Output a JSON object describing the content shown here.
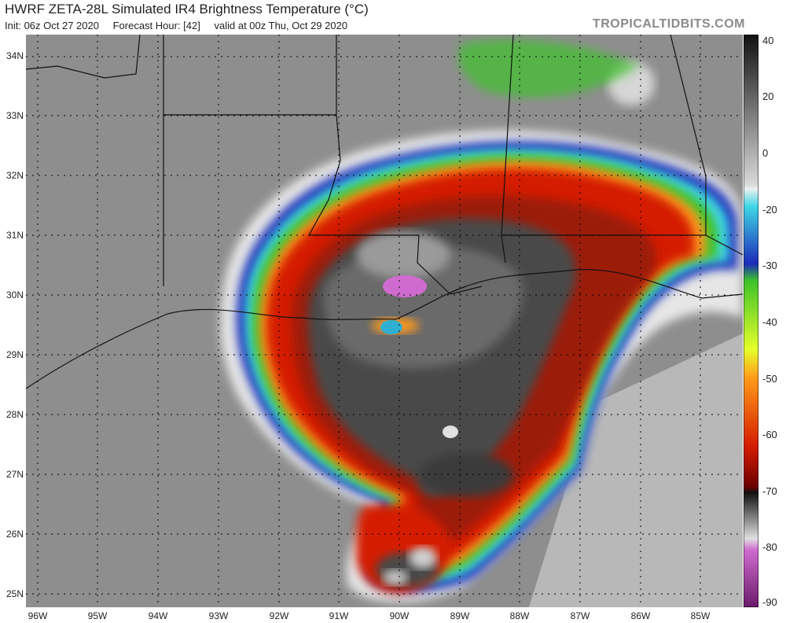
{
  "header": {
    "title": "HWRF ZETA-28L Simulated IR4 Brightness Temperature (°C)",
    "init": "Init: 06z Oct 27 2020",
    "forecast": "Forecast Hour: [42]",
    "valid": "valid at 00z Thu, Oct 29 2020",
    "brand": "TROPICALTIDBITS.COM"
  },
  "map": {
    "lat_labels": [
      "34N",
      "33N",
      "32N",
      "31N",
      "30N",
      "29N",
      "28N",
      "27N",
      "26N",
      "25N"
    ],
    "lon_labels": [
      "96W",
      "95W",
      "94W",
      "93W",
      "92W",
      "91W",
      "90W",
      "89W",
      "88W",
      "87W",
      "86W",
      "85W"
    ]
  },
  "colorbar": {
    "labels": [
      "40",
      "20",
      "0",
      "-20",
      "-30",
      "-40",
      "-50",
      "-60",
      "-70",
      "-80",
      "-90"
    ]
  },
  "colors": {
    "background_gray": "#8e8e8e",
    "red": "#d41c00",
    "green": "#3ec32a",
    "cyan": "#3fd6e6",
    "blue": "#1d2bb8",
    "magenta": "#cf6bcf"
  }
}
